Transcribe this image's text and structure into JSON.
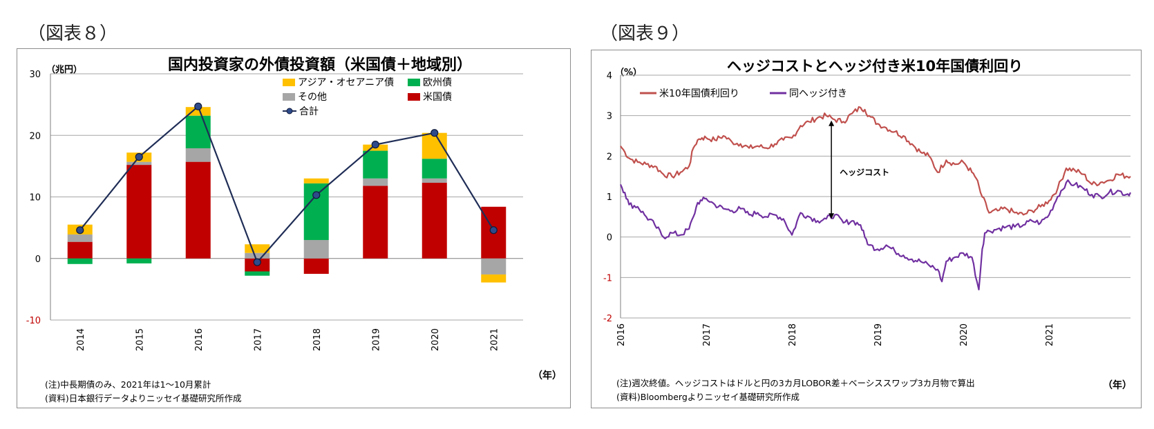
{
  "figure8": {
    "label": "（図表８）",
    "note": "(注)中長期債のみ、2021年は1～10月累計",
    "source": "(資料)日本銀行データよりニッセイ基礎研究所作成"
  },
  "figure9": {
    "label": "（図表９）",
    "note": "(注)週次終値。ヘッジコストはドルと円の3カ月LOBOR差＋ベーシススワップ3カ月物で算出",
    "source": "(資料)Bloombergよりニッセイ基礎研究所作成"
  },
  "chart_data": [
    {
      "type": "bar",
      "stacked": true,
      "title": "国内投資家の外債投資額（米国債＋地域別）",
      "ylabel": "（兆円）",
      "xlabel": "（年）",
      "ylim": [
        -10,
        30
      ],
      "yticks": [
        "30",
        "20",
        "10",
        "0",
        "-10"
      ],
      "grid": true,
      "legend_position": "top-right",
      "categories": [
        "2014",
        "2015",
        "2016",
        "2017",
        "2018",
        "2019",
        "2020",
        "2021"
      ],
      "series": [
        {
          "name": "米国債",
          "color": "#c00000",
          "values": [
            2.7,
            15.2,
            15.7,
            -2.1,
            -2.5,
            11.8,
            12.3,
            8.4
          ]
        },
        {
          "name": "その他",
          "color": "#a6a6a6",
          "values": [
            1.2,
            0.5,
            2.2,
            0.9,
            3.0,
            1.2,
            0.7,
            -2.6
          ]
        },
        {
          "name": "欧州債",
          "color": "#00b050",
          "values": [
            -0.9,
            -0.8,
            5.3,
            -0.7,
            9.2,
            4.5,
            3.2,
            0.0
          ]
        },
        {
          "name": "アジア・オセアニア債",
          "color": "#ffc000",
          "values": [
            1.6,
            1.5,
            1.4,
            1.4,
            0.8,
            1.0,
            4.2,
            -1.3
          ]
        }
      ],
      "total": {
        "name": "合計",
        "color": "#1f2d56",
        "values": [
          4.6,
          16.5,
          24.7,
          -0.6,
          10.3,
          18.5,
          20.4,
          4.6
        ]
      }
    },
    {
      "type": "line",
      "title": "ヘッジコストとヘッジ付き米10年国債利回り",
      "ylabel": "（%）",
      "xlabel": "（年）",
      "ylim": [
        -2,
        4
      ],
      "yticks": [
        "4",
        "3",
        "2",
        "1",
        "0",
        "-1",
        "-2"
      ],
      "xlim": [
        2016,
        2021.95
      ],
      "xticks": [
        "2016",
        "2017",
        "2018",
        "2019",
        "2020",
        "2021"
      ],
      "grid": true,
      "legend_position": "top-left",
      "annotation": "ヘッジコスト",
      "series": [
        {
          "name": "米10年国債利回り",
          "color": "#c0504d",
          "x": [
            2016.0,
            2016.05,
            2016.1,
            2016.2,
            2016.3,
            2016.4,
            2016.5,
            2016.6,
            2016.7,
            2016.8,
            2016.85,
            2016.9,
            2016.95,
            2017.0,
            2017.1,
            2017.2,
            2017.3,
            2017.4,
            2017.5,
            2017.6,
            2017.7,
            2017.8,
            2017.9,
            2018.0,
            2018.1,
            2018.2,
            2018.3,
            2018.4,
            2018.5,
            2018.6,
            2018.7,
            2018.8,
            2018.85,
            2018.9,
            2019.0,
            2019.1,
            2019.2,
            2019.3,
            2019.4,
            2019.5,
            2019.6,
            2019.7,
            2019.8,
            2019.9,
            2020.0,
            2020.1,
            2020.15,
            2020.2,
            2020.3,
            2020.4,
            2020.5,
            2020.6,
            2020.7,
            2020.8,
            2020.9,
            2021.0,
            2021.1,
            2021.2,
            2021.3,
            2021.4,
            2021.5,
            2021.6,
            2021.7,
            2021.8,
            2021.9,
            2021.95
          ],
          "y": [
            2.25,
            2.1,
            1.95,
            1.85,
            1.8,
            1.75,
            1.55,
            1.5,
            1.6,
            1.75,
            2.2,
            2.4,
            2.45,
            2.45,
            2.4,
            2.5,
            2.35,
            2.3,
            2.2,
            2.25,
            2.2,
            2.3,
            2.4,
            2.45,
            2.75,
            2.85,
            2.95,
            3.0,
            2.9,
            2.85,
            3.05,
            3.2,
            3.15,
            3.0,
            2.8,
            2.7,
            2.6,
            2.5,
            2.3,
            2.1,
            2.0,
            1.6,
            1.9,
            1.8,
            1.85,
            1.6,
            1.45,
            1.1,
            0.6,
            0.65,
            0.7,
            0.6,
            0.55,
            0.65,
            0.75,
            0.9,
            1.2,
            1.7,
            1.65,
            1.55,
            1.3,
            1.35,
            1.4,
            1.55,
            1.5,
            1.5
          ]
        },
        {
          "name": "同ヘッジ付き",
          "color": "#7030a0",
          "x": [
            2016.0,
            2016.05,
            2016.1,
            2016.2,
            2016.3,
            2016.4,
            2016.5,
            2016.6,
            2016.7,
            2016.8,
            2016.85,
            2016.9,
            2016.95,
            2017.0,
            2017.1,
            2017.2,
            2017.3,
            2017.4,
            2017.5,
            2017.6,
            2017.7,
            2017.8,
            2017.9,
            2018.0,
            2018.1,
            2018.2,
            2018.3,
            2018.4,
            2018.5,
            2018.6,
            2018.7,
            2018.8,
            2018.85,
            2018.9,
            2019.0,
            2019.1,
            2019.2,
            2019.3,
            2019.4,
            2019.5,
            2019.6,
            2019.7,
            2019.75,
            2019.8,
            2019.9,
            2020.0,
            2020.1,
            2020.18,
            2020.22,
            2020.25,
            2020.3,
            2020.4,
            2020.5,
            2020.6,
            2020.7,
            2020.8,
            2020.9,
            2021.0,
            2021.1,
            2021.2,
            2021.3,
            2021.4,
            2021.5,
            2021.6,
            2021.7,
            2021.8,
            2021.9,
            2021.95
          ],
          "y": [
            1.3,
            1.1,
            0.8,
            0.75,
            0.5,
            0.3,
            0.0,
            0.1,
            0.05,
            0.2,
            0.5,
            0.85,
            0.9,
            0.95,
            0.8,
            0.7,
            0.65,
            0.7,
            0.55,
            0.6,
            0.5,
            0.55,
            0.45,
            0.05,
            0.6,
            0.5,
            0.4,
            0.45,
            0.55,
            0.35,
            0.4,
            0.3,
            0.0,
            -0.2,
            -0.3,
            -0.2,
            -0.35,
            -0.45,
            -0.55,
            -0.6,
            -0.7,
            -0.8,
            -1.1,
            -0.6,
            -0.5,
            -0.4,
            -0.5,
            -1.3,
            -0.3,
            0.1,
            0.15,
            0.2,
            0.25,
            0.25,
            0.3,
            0.4,
            0.35,
            0.55,
            1.0,
            1.35,
            1.3,
            1.2,
            1.05,
            1.0,
            1.1,
            1.15,
            1.05,
            1.1
          ]
        }
      ]
    }
  ]
}
